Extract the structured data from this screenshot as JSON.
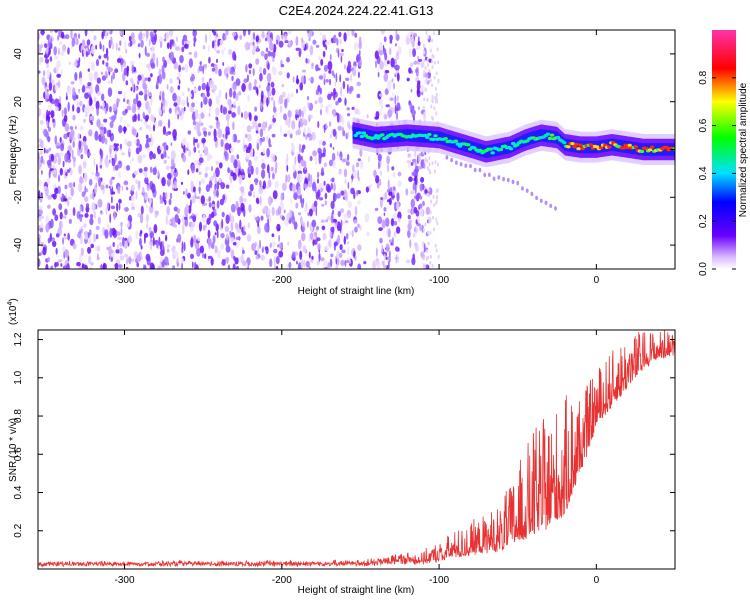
{
  "title": "C2E4.2024.224.22.41.G13",
  "chart_data": [
    {
      "type": "heatmap",
      "xlabel": "Height of straight line (km)",
      "ylabel": "Frequency (Hz)",
      "xlim": [
        -355,
        50
      ],
      "ylim": [
        -50,
        50
      ],
      "xticks": [
        -300,
        -200,
        -100,
        0
      ],
      "yticks": [
        -40,
        -20,
        0,
        20,
        40
      ],
      "colorbar": {
        "label": "Normalized spectral amplitude",
        "range": [
          0,
          1
        ],
        "ticks": [
          0.0,
          0.2,
          0.4,
          0.6,
          0.8
        ],
        "colormap": "rainbow (violet to red)"
      },
      "noise_region_x": [
        -355,
        -110
      ],
      "noise_gaps_x": [
        [
          -150,
          -140
        ],
        [
          -125,
          -120
        ]
      ],
      "signal_track": {
        "x": [
          -155,
          -140,
          -120,
          -100,
          -85,
          -70,
          -55,
          -45,
          -35,
          -25,
          -20,
          -10,
          0,
          10,
          20,
          30,
          50
        ],
        "freq": [
          7,
          5,
          6,
          5,
          2,
          -1,
          1,
          4,
          6,
          5,
          2,
          1,
          1,
          2,
          1,
          0,
          0
        ]
      },
      "low_branch": {
        "x": [
          -95,
          -70,
          -50,
          -25
        ],
        "freq": [
          -4,
          -10,
          -15,
          -25
        ]
      }
    },
    {
      "type": "line",
      "xlabel": "Height of straight line (km)",
      "ylabel": "SNR (10 * v/v)",
      "scale_label": "(x10",
      "scale_exp": "4",
      "scale_close": ")",
      "xlim": [
        -355,
        50
      ],
      "ylim": [
        0.0,
        1.25
      ],
      "xticks": [
        -300,
        -200,
        -100,
        0
      ],
      "yticks": [
        0.2,
        0.4,
        0.6,
        0.8,
        1.0,
        1.2
      ],
      "line_color": "#e83232",
      "envelope": {
        "x": [
          -355,
          -150,
          -140,
          -130,
          -110,
          -100,
          -90,
          -75,
          -60,
          -50,
          -40,
          -30,
          -20,
          -15,
          -10,
          -5,
          0,
          10,
          20,
          30,
          40,
          50
        ],
        "base": [
          0.02,
          0.02,
          0.02,
          0.03,
          0.03,
          0.04,
          0.06,
          0.08,
          0.1,
          0.14,
          0.18,
          0.22,
          0.28,
          0.4,
          0.5,
          0.62,
          0.75,
          0.85,
          0.95,
          1.05,
          1.1,
          1.12
        ],
        "spike": [
          0.01,
          0.02,
          0.03,
          0.05,
          0.06,
          0.1,
          0.14,
          0.18,
          0.25,
          0.4,
          0.55,
          0.6,
          0.62,
          0.55,
          0.45,
          0.35,
          0.3,
          0.3,
          0.28,
          0.2,
          0.15,
          0.12
        ]
      }
    }
  ]
}
